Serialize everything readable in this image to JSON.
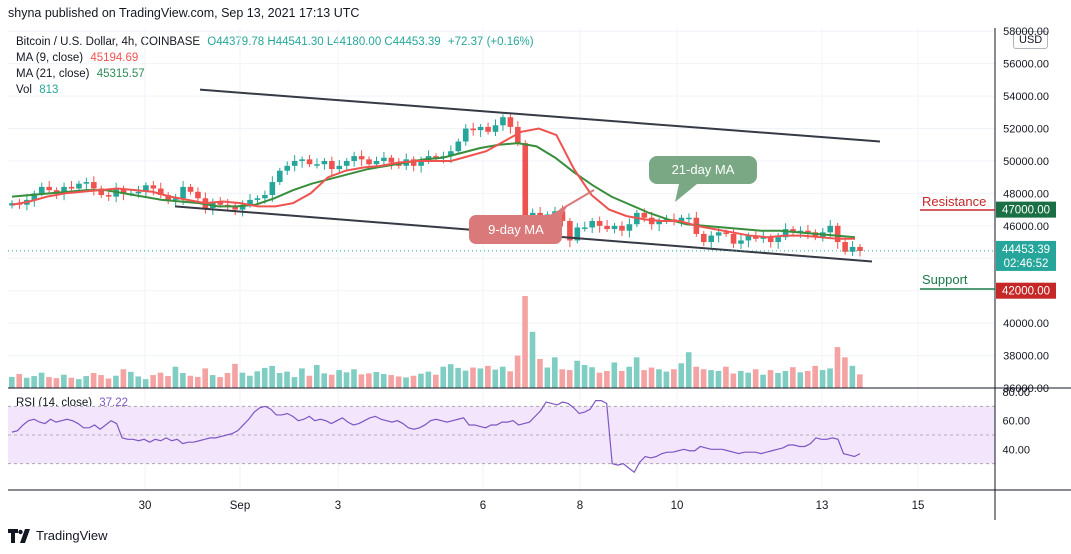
{
  "header": {
    "published": "shyna published on TradingView.com, Sep 13, 2021 17:13 UTC"
  },
  "legend": {
    "symbol": "Bitcoin / U.S. Dollar, 4h, COINBASE",
    "ohlc": "O44379.78  H44541.30  L44180.00  C44453.39",
    "change": "+72.37 (+0.16%)",
    "ma9_label": "MA (9, close)",
    "ma9_value": "45194.69",
    "ma21_label": "MA (21, close)",
    "ma21_value": "45315.57",
    "vol_label": "Vol",
    "vol_value": "813"
  },
  "currency_button": "USD",
  "annotations": {
    "ma21_callout": "21-day MA",
    "ma9_callout": "9-day MA",
    "resistance": "Resistance",
    "support": "Support",
    "resistance_level": "47000.00",
    "support_level": "42000.00",
    "current_price": "44453.39",
    "countdown": "02:46:52"
  },
  "rsi": {
    "label": "RSI (14, close)",
    "value": "37.22",
    "ticks": [
      "80.00",
      "60.00",
      "40.00"
    ]
  },
  "footer": {
    "brand": "TradingView"
  },
  "colors": {
    "up": "#26a69a",
    "down": "#ef5350",
    "ma9": "#ef5350",
    "ma21": "#388e3c",
    "rsi": "#7e57c2",
    "rsi_band": "#f3e5fc"
  },
  "chart_data": {
    "type": "candlestick",
    "title": "Bitcoin / U.S. Dollar, 4h, COINBASE",
    "x_ticks": [
      "30",
      "Sep",
      "3",
      "6",
      "8",
      "10",
      "13",
      "15"
    ],
    "y_ticks": [
      "58000.00",
      "56000.00",
      "54000.00",
      "52000.00",
      "50000.00",
      "48000.00",
      "46000.00",
      "44000.00",
      "42000.00",
      "40000.00",
      "38000.00",
      "36000.00"
    ],
    "ylim": [
      36000,
      58200
    ],
    "close": [
      47400,
      47300,
      47600,
      48000,
      48400,
      48200,
      48000,
      48400,
      48300,
      48600,
      48700,
      48300,
      47900,
      47800,
      48300,
      48000,
      48000,
      48100,
      48500,
      48300,
      47900,
      47600,
      47700,
      48400,
      48100,
      47700,
      47100,
      47500,
      47300,
      47200,
      47000,
      47300,
      47600,
      47700,
      47900,
      48700,
      49400,
      49700,
      50000,
      50100,
      49800,
      49800,
      50000,
      49500,
      49700,
      50000,
      50300,
      50100,
      49800,
      50000,
      50200,
      49900,
      49700,
      50100,
      49700,
      50000,
      50300,
      50200,
      50300,
      50600,
      51200,
      52000,
      51900,
      52100,
      51800,
      52200,
      52700,
      52100,
      51100,
      46500,
      46800,
      46200,
      46700,
      46900,
      46300,
      45100,
      45900,
      45900,
      46300,
      46000,
      45800,
      46000,
      45700,
      46100,
      46800,
      46500,
      46100,
      46300,
      46400,
      46300,
      46500,
      46500,
      45500,
      45000,
      45400,
      45600,
      45500,
      44900,
      45100,
      45400,
      45200,
      45300,
      45000,
      45300,
      45800,
      45600,
      45700,
      45600,
      45300,
      45600,
      46000,
      45000,
      44400,
      44700,
      44450
    ],
    "ma9": [
      47300,
      47500,
      47800,
      48000,
      48100,
      48200,
      48300,
      48200,
      48100,
      47800,
      47600,
      47400,
      47500,
      47400,
      47200,
      47200,
      47400,
      48000,
      49000,
      49400,
      49600,
      49700,
      49900,
      50000,
      50000,
      50000,
      50300,
      50600,
      51200,
      51800,
      52000,
      51600,
      49500,
      47900,
      47000,
      46600,
      46400,
      46300,
      46300,
      46000,
      45800,
      45600,
      45400,
      45300,
      45400,
      45400,
      45300,
      45200,
      45200
    ],
    "ma21": [
      47800,
      47900,
      48000,
      48100,
      48200,
      48200,
      48000,
      47800,
      47600,
      47500,
      47400,
      47200,
      47200,
      47300,
      47700,
      48200,
      48600,
      48900,
      49200,
      49500,
      49700,
      49900,
      50100,
      50200,
      50500,
      50800,
      51000,
      51100,
      50900,
      50200,
      49300,
      48500,
      47800,
      47300,
      46800,
      46400,
      46100,
      46000,
      45900,
      45800,
      45700,
      45700,
      45600,
      45500,
      45400,
      45300
    ],
    "volume": [
      650,
      820,
      600,
      700,
      900,
      640,
      580,
      780,
      600,
      520,
      700,
      880,
      760,
      560,
      720,
      1100,
      950,
      680,
      520,
      760,
      900,
      700,
      1250,
      880,
      720,
      650,
      1150,
      760,
      640,
      880,
      1420,
      900,
      720,
      980,
      1180,
      1300,
      880,
      960,
      640,
      1150,
      720,
      1350,
      860,
      780,
      1050,
      920,
      1100,
      800,
      860,
      940,
      820,
      760,
      680,
      620,
      720,
      840,
      960,
      780,
      1250,
      1400,
      1180,
      1020,
      1200,
      1150,
      1300,
      1080,
      1250,
      980,
      1900,
      5400,
      3300,
      1700,
      1200,
      1800,
      1100,
      1050,
      1600,
      1350,
      1220,
      900,
      1000,
      1500,
      1000,
      1250,
      1800,
      1050,
      1200,
      1100,
      960,
      1100,
      1450,
      2100,
      1250,
      1100,
      1050,
      1000,
      1250,
      850,
      1000,
      900,
      1100,
      780,
      1050,
      880,
      1000,
      1220,
      920,
      1000,
      1300,
      1050,
      1150,
      2400,
      1800,
      1300,
      800
    ],
    "rsi": [
      52,
      53,
      57,
      60,
      61,
      59,
      58,
      61,
      59,
      60,
      61,
      60,
      58,
      55,
      55,
      57,
      54,
      57,
      60,
      58,
      48,
      47,
      47,
      46,
      47,
      45,
      47,
      46,
      48,
      46,
      47,
      44,
      45,
      45,
      46,
      47,
      48,
      48,
      49,
      50,
      51,
      53,
      57,
      61,
      66,
      69,
      70,
      68,
      64,
      64,
      65,
      63,
      60,
      61,
      63,
      60,
      61,
      60,
      58,
      60,
      62,
      59,
      57,
      58,
      60,
      62,
      63,
      61,
      60,
      59,
      60,
      58,
      55,
      54,
      55,
      57,
      60,
      61,
      60,
      59,
      60,
      61,
      62,
      57,
      57,
      56,
      55,
      57,
      57,
      59,
      59,
      60,
      57,
      58,
      59,
      63,
      67,
      73,
      72,
      71,
      73,
      72,
      69,
      65,
      66,
      68,
      74,
      74,
      72,
      30,
      29,
      30,
      27,
      24,
      31,
      35,
      34,
      35,
      37,
      38,
      38,
      39,
      40,
      39,
      39,
      42,
      41,
      40,
      40,
      40,
      39,
      38,
      37,
      38,
      38,
      38,
      37,
      38,
      39,
      40,
      41,
      43,
      43,
      42,
      42,
      44,
      48,
      47,
      47,
      48,
      47,
      37,
      36,
      35,
      37
    ],
    "rsi_ylim": [
      20,
      80
    ],
    "rsi_band": [
      30,
      70
    ]
  }
}
